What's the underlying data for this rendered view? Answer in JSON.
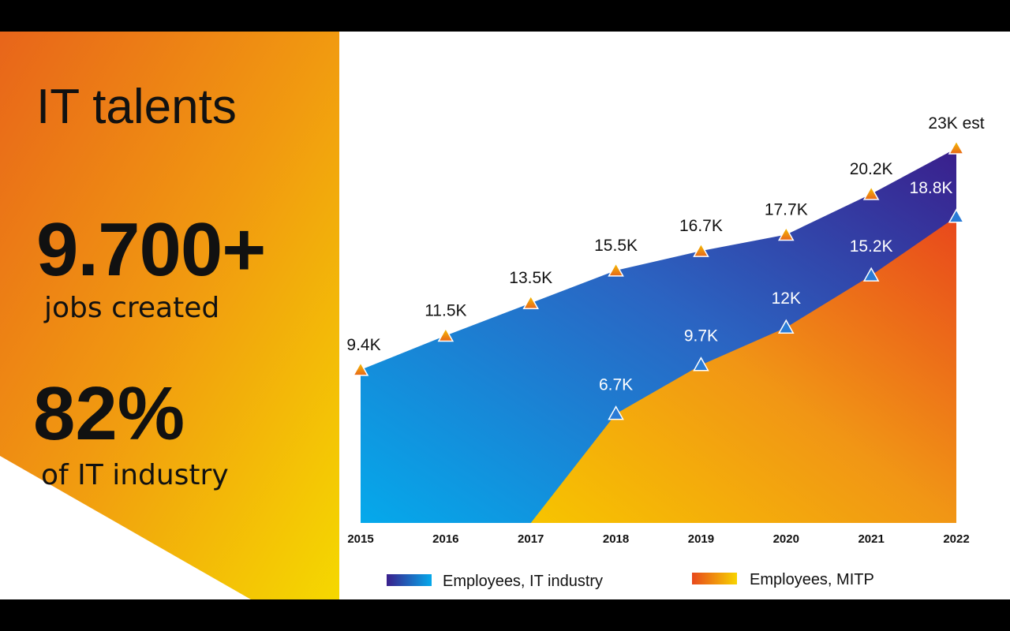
{
  "slide": {
    "title": "IT talents",
    "stat1_value": "9.700+",
    "stat1_caption": "jobs created",
    "stat2_value": "82%",
    "stat2_caption": "of IT industry"
  },
  "colors": {
    "left_panel_orange": "#e8651a",
    "left_panel_yellow": "#f5d800",
    "it_blue_light": "#05a9eb",
    "it_blue_dark": "#3a1f8c",
    "mitp_yellow": "#f7b500",
    "mitp_red": "#e8481c"
  },
  "chart_data": {
    "type": "area",
    "x": [
      2015,
      2016,
      2017,
      2018,
      2019,
      2020,
      2021,
      2022
    ],
    "series": [
      {
        "name": "Employees, IT industry",
        "values": [
          9.4,
          11.5,
          13.5,
          15.5,
          16.7,
          17.7,
          20.2,
          23
        ],
        "labels": [
          "9.4K",
          "11.5K",
          "13.5K",
          "15.5K",
          "16.7K",
          "17.7K",
          "20.2K",
          "23K est"
        ]
      },
      {
        "name": "Employees, MITP",
        "values": [
          null,
          null,
          0,
          6.7,
          9.7,
          12,
          15.2,
          18.8
        ],
        "labels": [
          "",
          "",
          "",
          "6.7K",
          "9.7K",
          "12K",
          "15.2K",
          "18.8K"
        ]
      }
    ],
    "legend": "bottom"
  }
}
